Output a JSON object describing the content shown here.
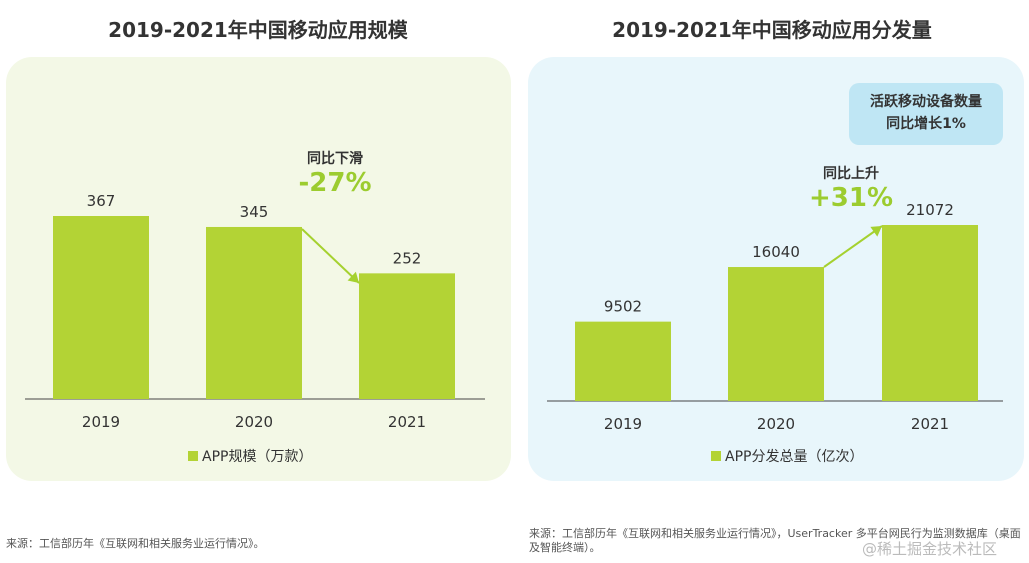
{
  "left": {
    "title": "2019-2021年中国移动应用规模",
    "callout_label": "同比下滑",
    "callout_pct": "-27%",
    "legend": "APP规模（万款）",
    "source": "来源：工信部历年《互联网和相关服务业运行情况》。"
  },
  "right": {
    "title": "2019-2021年中国移动应用分发量",
    "callout_label": "同比上升",
    "callout_pct": "+31%",
    "legend": "APP分发总量（亿次）",
    "badge_line1": "活跃移动设备数量",
    "badge_line2": "同比增长1%",
    "source": "来源：工信部历年《互联网和相关服务业运行情况》，UserTracker 多平台网民行为监测数据库（桌面及智能终端）。"
  },
  "watermark": "@稀土掘金技术社区",
  "colors": {
    "bar": "#b3d335",
    "accent": "#9ccc2f",
    "arrow": "#a5d12f"
  },
  "chart_data": [
    {
      "type": "bar",
      "title": "2019-2021年中国移动应用规模",
      "categories": [
        "2019",
        "2020",
        "2021"
      ],
      "series": [
        {
          "name": "APP规模（万款）",
          "values": [
            367,
            345,
            252
          ]
        }
      ],
      "annotation": "同比下滑 -27%",
      "legend": "bottom"
    },
    {
      "type": "bar",
      "title": "2019-2021年中国移动应用分发量",
      "categories": [
        "2019",
        "2020",
        "2021"
      ],
      "series": [
        {
          "name": "APP分发总量（亿次）",
          "values": [
            9502,
            16040,
            21072
          ]
        }
      ],
      "annotation": "同比上升 +31%",
      "legend": "bottom"
    }
  ]
}
